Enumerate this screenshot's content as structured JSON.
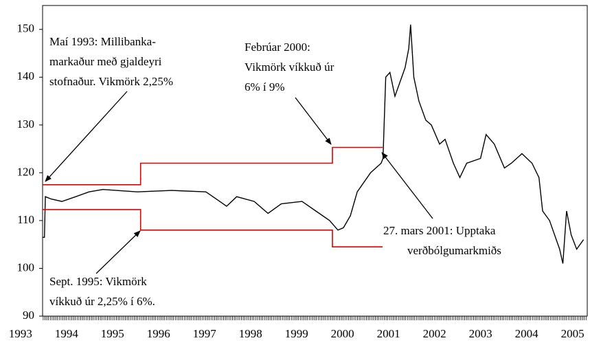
{
  "chart_data": {
    "type": "line",
    "xlim": [
      1993.48,
      2005.32
    ],
    "ylim": [
      90,
      155
    ],
    "xticks": [
      1993,
      1994,
      1995,
      1996,
      1997,
      1998,
      1999,
      2000,
      2001,
      2002,
      2003,
      2004,
      2005
    ],
    "yticks": [
      90,
      100,
      110,
      120,
      130,
      140,
      150
    ],
    "grid": false,
    "series": [
      {
        "color": "#000000",
        "x": [
          1993.48,
          1993.52,
          1993.54,
          1993.67,
          1993.9,
          1994.2,
          1994.49,
          1994.79,
          1995.54,
          1996.29,
          1997.03,
          1997.33,
          1997.48,
          1997.7,
          1998.08,
          1998.38,
          1998.67,
          1999.12,
          1999.42,
          1999.72,
          1999.9,
          2000.02,
          2000.17,
          2000.32,
          2000.61,
          2000.84,
          2000.88,
          2000.94,
          2001.03,
          2001.14,
          2001.36,
          2001.44,
          2001.48,
          2001.55,
          2001.66,
          2001.81,
          2001.93,
          2002.11,
          2002.23,
          2002.41,
          2002.55,
          2002.7,
          2003.0,
          2003.12,
          2003.3,
          2003.52,
          2003.67,
          2003.9,
          2004.12,
          2004.27,
          2004.35,
          2004.5,
          2004.72,
          2004.79,
          2004.87,
          2004.97,
          2005.09,
          2005.24
        ],
        "values": [
          106.5,
          106.5,
          115,
          114.5,
          114,
          115,
          116,
          116.5,
          116,
          116.3,
          116,
          114,
          113,
          115,
          114,
          111.5,
          113.5,
          114,
          112,
          110,
          108,
          108.5,
          111,
          116,
          120,
          122,
          123,
          140,
          141,
          136,
          142,
          146,
          151,
          140,
          135,
          131,
          130,
          126,
          127,
          122,
          119,
          122,
          123,
          128,
          126,
          121,
          122,
          124,
          122,
          119,
          112,
          110,
          104,
          101,
          112,
          107,
          104,
          106
        ]
      },
      {
        "color": "#e00000",
        "x": [
          1993.48,
          1995.61,
          1995.61,
          1999.78,
          1999.78,
          2000.87
        ],
        "values": [
          117.5,
          117.5,
          122,
          122,
          125.3,
          125.3
        ]
      },
      {
        "color": "#e00000",
        "x": [
          1993.48,
          1995.61,
          1995.61,
          1999.78,
          1999.78,
          2000.87
        ],
        "values": [
          112.3,
          112.3,
          108,
          108,
          104.5,
          104.5
        ]
      }
    ],
    "annotations": [
      {
        "lines": [
          "Maí 1993: Millibanka-",
          "markaður með gjaldeyri",
          "stofnaður. Vikmörk 2,25%"
        ]
      },
      {
        "lines": [
          "Febrúar 2000:",
          "Vikmörk víkkuð úr",
          "6% í 9%"
        ]
      },
      {
        "lines": [
          "27. mars 2001: Upptaka",
          "verðbólgumarkmiðs"
        ]
      },
      {
        "lines": [
          "Sept. 1995: Vikmörk",
          "víkkuð úr 2,25% í 6%."
        ]
      }
    ]
  }
}
